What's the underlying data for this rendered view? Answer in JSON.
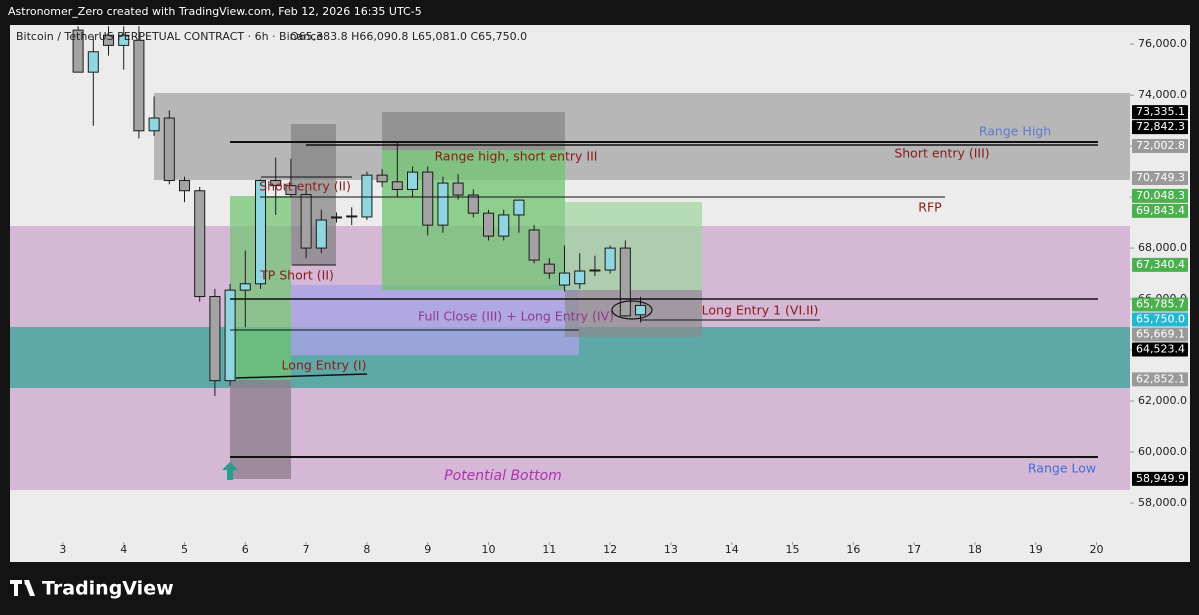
{
  "top_bar": "Astronomer_Zero created with TradingView.com, Feb 12, 2026 16:35 UTC-5",
  "brand": "TradingView",
  "chart_data": {
    "type": "candlestick",
    "title": "Bitcoin / TetherUS PERPETUAL CONTRACT · 6h · Binance",
    "ohlc_legend": "O65,383.8 H66,090.8 L65,081.0 C65,750.0",
    "up_color": "#8fd6e1",
    "down_color": "#a3a3a3",
    "x": [
      3.25,
      3.5,
      3.75,
      4,
      4.25,
      4.5,
      4.75,
      5,
      5.25,
      5.5,
      5.75,
      6,
      6.25,
      6.5,
      6.75,
      7,
      7.25,
      7.5,
      7.75,
      8,
      8.25,
      8.5,
      8.75,
      9,
      9.25,
      9.5,
      9.75,
      10,
      10.25,
      10.5,
      10.75,
      11,
      11.25,
      11.5,
      11.75,
      12,
      12.25,
      12.5
    ],
    "open": [
      76550,
      74900,
      76350,
      75950,
      76150,
      72600,
      73100,
      70650,
      70250,
      66100,
      62800,
      66350,
      66600,
      70650,
      70450,
      70100,
      68000,
      69200,
      69260,
      69220,
      70860,
      70600,
      70300,
      70980,
      68900,
      70550,
      70080,
      69370,
      68470,
      69300,
      68710,
      67370,
      66550,
      66600,
      67140,
      67140,
      68000,
      65383.8
    ],
    "high": [
      76700,
      76300,
      76700,
      76700,
      76700,
      73950,
      73400,
      70800,
      70400,
      66400,
      66600,
      67900,
      70700,
      71550,
      71500,
      70300,
      69500,
      69400,
      69600,
      71000,
      71100,
      72200,
      71200,
      71200,
      70800,
      70900,
      70300,
      69500,
      69500,
      69900,
      68900,
      67600,
      68100,
      67800,
      67700,
      68100,
      68300,
      66090.8
    ],
    "low": [
      74900,
      72800,
      75550,
      75000,
      72300,
      72400,
      70500,
      69800,
      65900,
      62200,
      62600,
      64900,
      66400,
      69300,
      70000,
      67600,
      67800,
      69000,
      68900,
      69100,
      70400,
      70000,
      70000,
      68500,
      68600,
      69900,
      69200,
      68300,
      68300,
      68600,
      67400,
      66800,
      66300,
      66400,
      66900,
      67000,
      65300,
      65081
    ],
    "close": [
      74900,
      75700,
      75950,
      76350,
      72600,
      73100,
      70650,
      70250,
      66100,
      62800,
      66350,
      66600,
      70650,
      70450,
      70100,
      68000,
      69100,
      69220,
      69260,
      70860,
      70600,
      70300,
      70980,
      68900,
      70550,
      70080,
      69370,
      68470,
      69300,
      69880,
      67530,
      67020,
      67020,
      67100,
      67140,
      68000,
      65340,
      65750
    ],
    "xlim": [
      2.13,
      20.55
    ],
    "xticks": [
      3,
      4,
      5,
      6,
      7,
      8,
      9,
      10,
      11,
      12,
      13,
      14,
      15,
      16,
      17,
      18,
      19,
      20
    ],
    "ylim": [
      56550,
      76750
    ],
    "yticks": [
      {
        "value": 58000,
        "label": "58,000.0"
      },
      {
        "value": 60000,
        "label": "60,000.0"
      },
      {
        "value": 62000,
        "label": "62,000.0"
      },
      {
        "value": 64000,
        "label": "64,000.0"
      },
      {
        "value": 66000,
        "label": "66,000.0"
      },
      {
        "value": 68000,
        "label": "68,000.0"
      },
      {
        "value": 70000,
        "label": "70,000.0"
      },
      {
        "value": 72000,
        "label": "72,000.0"
      },
      {
        "value": 74000,
        "label": "74,000.0"
      },
      {
        "value": 76000,
        "label": "76,000.0"
      }
    ],
    "price_labels": [
      {
        "value": 73335.1,
        "label": "73,335.1",
        "color": "#000000"
      },
      {
        "value": 72842.3,
        "label": "72,842.3",
        "color": "#000000"
      },
      {
        "value": 72002.8,
        "label": "72,002.8",
        "color": "#9a9a9a"
      },
      {
        "value": 70749.3,
        "label": "70,749.3",
        "color": "#9a9a9a"
      },
      {
        "value": 70048.3,
        "label": "70,048.3",
        "color": "#4caf50"
      },
      {
        "value": 69843.4,
        "label": "69,843.4",
        "color": "#4caf50"
      },
      {
        "value": 67340.4,
        "label": "67,340.4",
        "color": "#4caf50"
      },
      {
        "value": 65785.7,
        "label": "65,785.7",
        "color": "#4caf50"
      },
      {
        "value": 65750.0,
        "label": "65,750.0",
        "color": "#22b8cf"
      },
      {
        "value": 65669.1,
        "label": "65,669.1",
        "color": "#9a9a9a"
      },
      {
        "value": 64523.4,
        "label": "64,523.4",
        "color": "#000000"
      },
      {
        "value": 62852.1,
        "label": "62,852.1",
        "color": "#9a9a9a"
      },
      {
        "value": 58949.9,
        "label": "58,949.9",
        "color": "#000000"
      }
    ],
    "annotations": [
      "Range High",
      "Short entry (III)",
      "RFP",
      "Range high, short entry III",
      "Short entry (II)",
      "TP  Short (II)",
      "Full Close (III) + Long Entry (IV)",
      "Long Entry 1 (VI.II)",
      "Long Entry (I)",
      "Potential Bottom",
      "Range Low"
    ]
  }
}
